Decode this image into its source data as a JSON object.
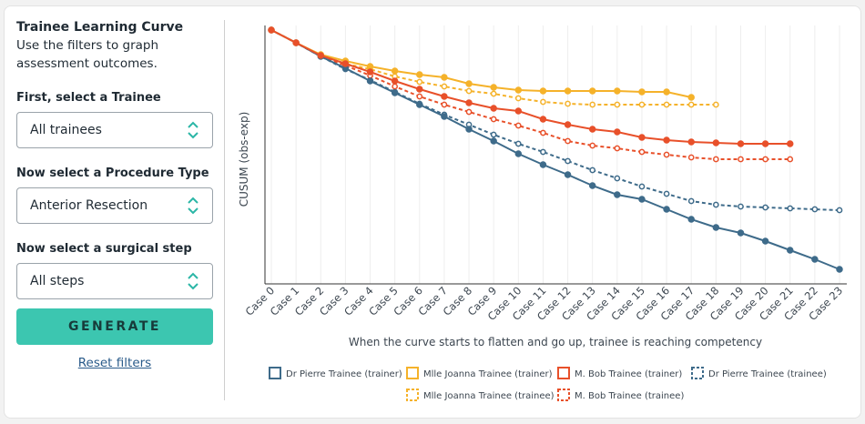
{
  "sidebar": {
    "title": "Trainee Learning Curve",
    "subtitle": "Use the filters to graph assessment outcomes.",
    "filters": [
      {
        "label": "First, select a Trainee",
        "value": "All trainees"
      },
      {
        "label": "Now select a Procedure Type",
        "value": "Anterior Resection"
      },
      {
        "label": "Now select a surgical step",
        "value": "All steps"
      }
    ],
    "button": "GENERATE",
    "reset": "Reset filters"
  },
  "chart_data": {
    "type": "line",
    "y_label": "CUSUM (obs-exp)",
    "x_label": "When the curve starts to flatten and go up, trainee is reaching competency",
    "categories": [
      "Case 0",
      "Case 1",
      "Case 2",
      "Case 3",
      "Case 4",
      "Case 5",
      "Case 6",
      "Case 7",
      "Case 8",
      "Case 9",
      "Case 10",
      "Case 11",
      "Case 12",
      "Case 13",
      "Case 14",
      "Case 15",
      "Case 16",
      "Case 17",
      "Case 18",
      "Case 19",
      "Case 20",
      "Case 21",
      "Case 22",
      "Case 23"
    ],
    "ylim": [
      -27.9,
      0.5
    ],
    "grid": true,
    "legend": "bottom",
    "series": [
      {
        "name": "Dr Pierre Trainee (trainer)",
        "color": "#3e6b8a",
        "style": "solid",
        "values": [
          0,
          -1.4,
          -2.9,
          -4.2,
          -5.6,
          -6.9,
          -8.2,
          -9.5,
          -10.9,
          -12.2,
          -13.6,
          -14.8,
          -15.9,
          -17.1,
          -18.1,
          -18.6,
          -19.7,
          -20.8,
          -21.7,
          -22.3,
          -23.2,
          -24.2,
          -25.2,
          -26.3
        ]
      },
      {
        "name": "Mlle Joanna Trainee (trainer)",
        "color": "#f5b22a",
        "style": "solid",
        "values": [
          0,
          -1.4,
          -2.7,
          -3.4,
          -4.0,
          -4.5,
          -4.9,
          -5.2,
          -5.9,
          -6.3,
          -6.6,
          -6.7,
          -6.7,
          -6.7,
          -6.7,
          -6.8,
          -6.8,
          -7.4,
          null,
          null,
          null,
          null,
          null,
          null
        ]
      },
      {
        "name": "M. Bob Trainee (trainer)",
        "color": "#e8502a",
        "style": "solid",
        "values": [
          0,
          -1.4,
          -2.8,
          -3.7,
          -4.6,
          -5.6,
          -6.5,
          -7.3,
          -8.0,
          -8.6,
          -8.9,
          -9.8,
          -10.4,
          -10.9,
          -11.2,
          -11.8,
          -12.1,
          -12.3,
          -12.4,
          -12.5,
          -12.5,
          -12.5,
          null,
          null
        ]
      },
      {
        "name": "Dr Pierre Trainee (trainee)",
        "color": "#3e6b8a",
        "style": "dashed",
        "values": [
          0,
          -1.4,
          -2.9,
          -4.3,
          -5.5,
          -6.8,
          -8.1,
          -9.3,
          -10.4,
          -11.5,
          -12.5,
          -13.4,
          -14.4,
          -15.4,
          -16.3,
          -17.2,
          -18.0,
          -18.8,
          -19.2,
          -19.4,
          -19.5,
          -19.6,
          -19.7,
          -19.8
        ]
      },
      {
        "name": "Mlle Joanna Trainee (trainee)",
        "color": "#f5b22a",
        "style": "dashed",
        "values": [
          0,
          -1.4,
          -2.8,
          -3.7,
          -4.3,
          -5.1,
          -5.7,
          -6.2,
          -6.7,
          -7.0,
          -7.5,
          -7.9,
          -8.1,
          -8.2,
          -8.2,
          -8.2,
          -8.2,
          -8.2,
          -8.2,
          null,
          null,
          null,
          null,
          null
        ]
      },
      {
        "name": "M. Bob Trainee (trainee)",
        "color": "#e8502a",
        "style": "dashed",
        "values": [
          0,
          -1.4,
          -2.9,
          -3.9,
          -5.0,
          -6.2,
          -7.3,
          -8.2,
          -9.0,
          -9.8,
          -10.5,
          -11.3,
          -12.2,
          -12.7,
          -13.0,
          -13.4,
          -13.7,
          -14.0,
          -14.2,
          -14.2,
          -14.2,
          -14.2,
          null,
          null
        ]
      }
    ]
  }
}
